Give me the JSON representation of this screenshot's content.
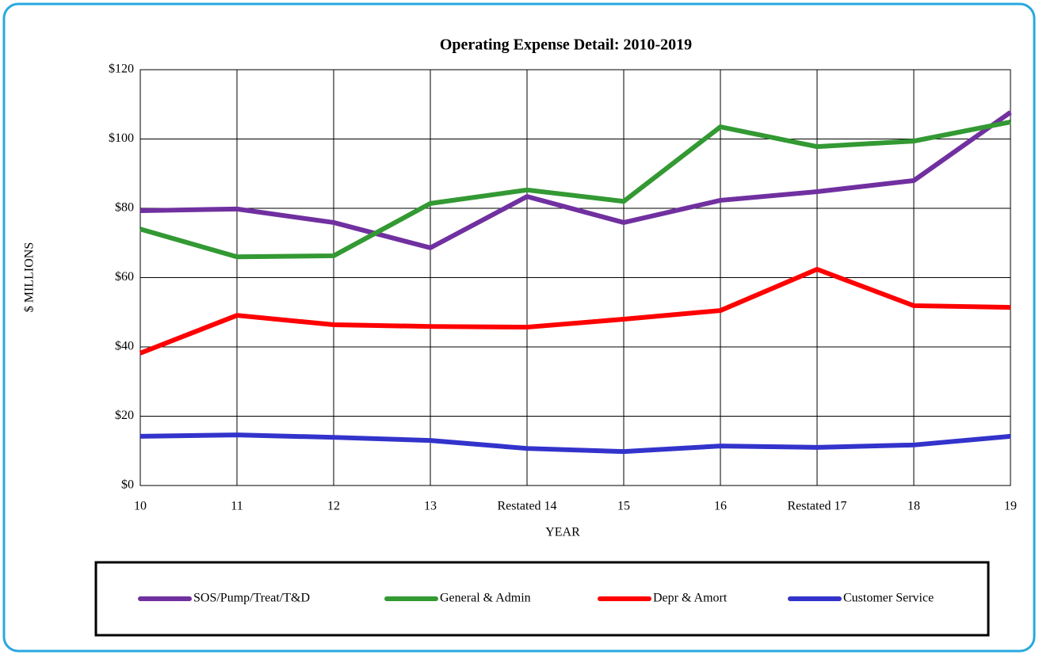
{
  "chart_data": {
    "type": "line",
    "title": "Operating Expense Detail: 2010-2019",
    "x_label": "YEAR",
    "y_label": "$ MILLIONS",
    "categories": [
      "10",
      "11",
      "12",
      "13",
      "Restated 14",
      "15",
      "16",
      "Restated 17",
      "18",
      "19"
    ],
    "series": [
      {
        "name": "SOS/Pump/Treat/T&D",
        "color": "#7030a0",
        "values": [
          79.3,
          79.8,
          75.9,
          68.6,
          83.4,
          75.9,
          82.3,
          84.8,
          88,
          107.7
        ]
      },
      {
        "name": "General & Admin",
        "color": "#339933",
        "values": [
          74,
          66,
          66.3,
          81.4,
          85.3,
          82,
          103.5,
          97.8,
          99.4,
          104.9
        ]
      },
      {
        "name": "Depr & Amort",
        "color": "#ff0000",
        "values": [
          38.2,
          49.1,
          46.4,
          45.9,
          45.7,
          48,
          50.5,
          62.4,
          51.9,
          51.4
        ]
      },
      {
        "name": "Customer Service",
        "color": "#3333cc",
        "values": [
          14.2,
          14.6,
          13.9,
          13,
          10.7,
          9.8,
          11.4,
          11,
          11.7,
          14.2
        ]
      }
    ],
    "ylim": [
      0,
      120
    ],
    "yticks": [
      {
        "value": 0,
        "label": "$0"
      },
      {
        "value": 20,
        "label": "$20"
      },
      {
        "value": 40,
        "label": "$40"
      },
      {
        "value": 60,
        "label": "$60"
      },
      {
        "value": 80,
        "label": "$80"
      },
      {
        "value": 100,
        "label": "$100"
      },
      {
        "value": 120,
        "label": "$120"
      }
    ],
    "grid": true,
    "legend": "bottom"
  }
}
